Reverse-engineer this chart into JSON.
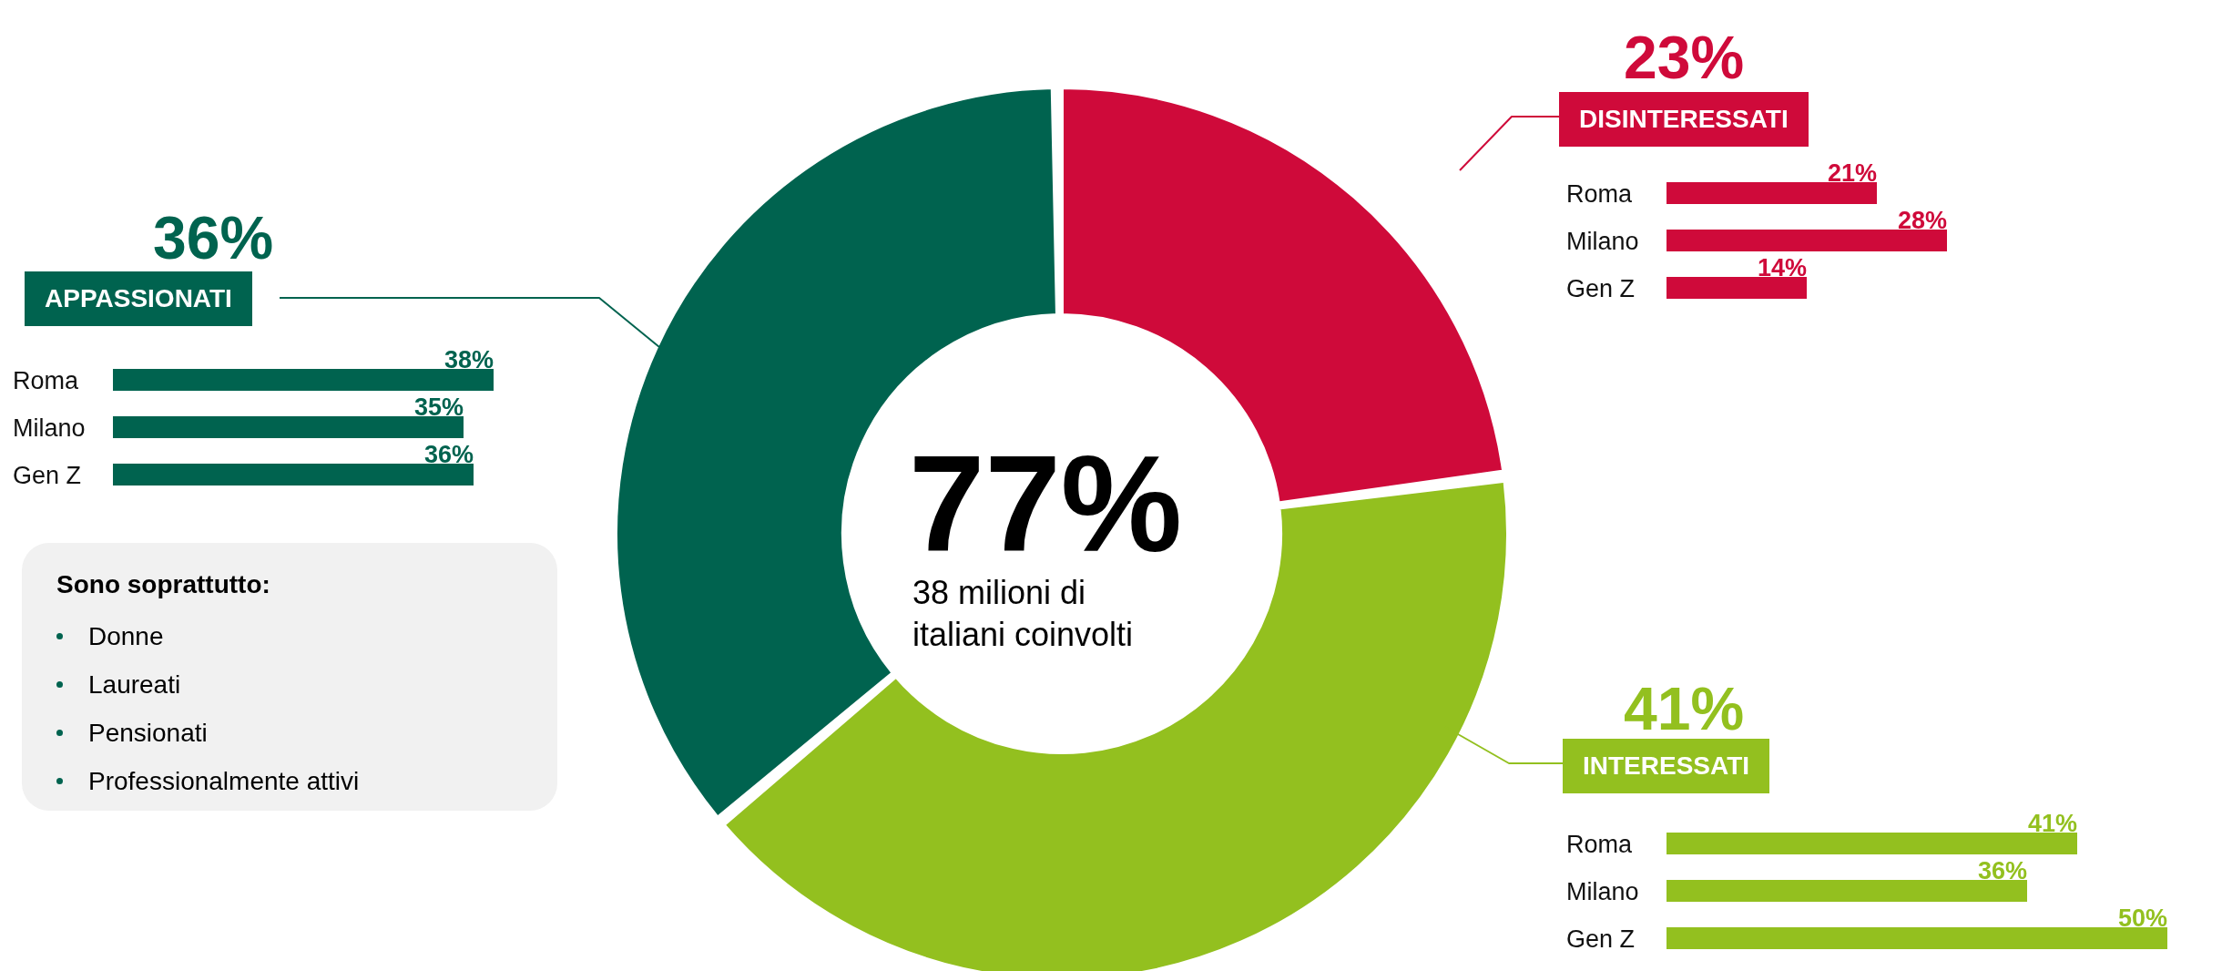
{
  "chart_data": [
    {
      "type": "donut",
      "categories": [
        "DISINTERESSATI",
        "INTERESSATI",
        "APPASSIONATI"
      ],
      "values": [
        23,
        41,
        36
      ],
      "colors": [
        "#cf0a3a",
        "#93c01f",
        "#00634f"
      ],
      "value_labels": [
        "23%",
        "41%",
        "36%"
      ],
      "annotations": [
        "77%",
        "38 milioni di italiani coinvolti"
      ]
    },
    {
      "type": "bar",
      "orientation": "horizontal",
      "categories": [
        "Roma",
        "Milano",
        "Gen Z"
      ],
      "values": [
        21,
        28,
        14
      ],
      "value_labels": [
        "21%",
        "28%",
        "14%"
      ],
      "color": "#cf0a3a"
    },
    {
      "type": "bar",
      "orientation": "horizontal",
      "categories": [
        "Roma",
        "Milano",
        "Gen Z"
      ],
      "values": [
        41,
        36,
        50
      ],
      "value_labels": [
        "41%",
        "36%",
        "50%"
      ],
      "color": "#93c01f"
    },
    {
      "type": "bar",
      "orientation": "horizontal",
      "categories": [
        "Roma",
        "Milano",
        "Gen Z"
      ],
      "values": [
        38,
        35,
        36
      ],
      "value_labels": [
        "38%",
        "35%",
        "36%"
      ],
      "color": "#00634f"
    },
    {
      "type": "other",
      "title": "Sono soprattutto:",
      "annotations": [
        "Donne",
        "Laureati",
        "Pensionati",
        "Professionalmente attivi"
      ]
    }
  ]
}
